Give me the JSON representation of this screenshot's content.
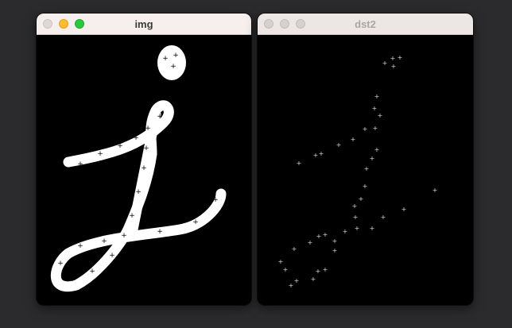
{
  "windows": [
    {
      "title": "img",
      "active": true,
      "controls": [
        "close",
        "minimize",
        "zoom"
      ],
      "content": "white handwritten letter with corner markers on black"
    },
    {
      "title": "dst2",
      "active": false,
      "controls": [
        "close",
        "minimize",
        "zoom"
      ],
      "content": "sparse white corner points on black"
    }
  ],
  "colors": {
    "desktop": "#2b2b2d",
    "active_titlebar": "#f6efed",
    "inactive_titlebar": "#ece7e5",
    "close": "#ded9d7",
    "minimize": "#febc2e",
    "zoom": "#28c840"
  }
}
